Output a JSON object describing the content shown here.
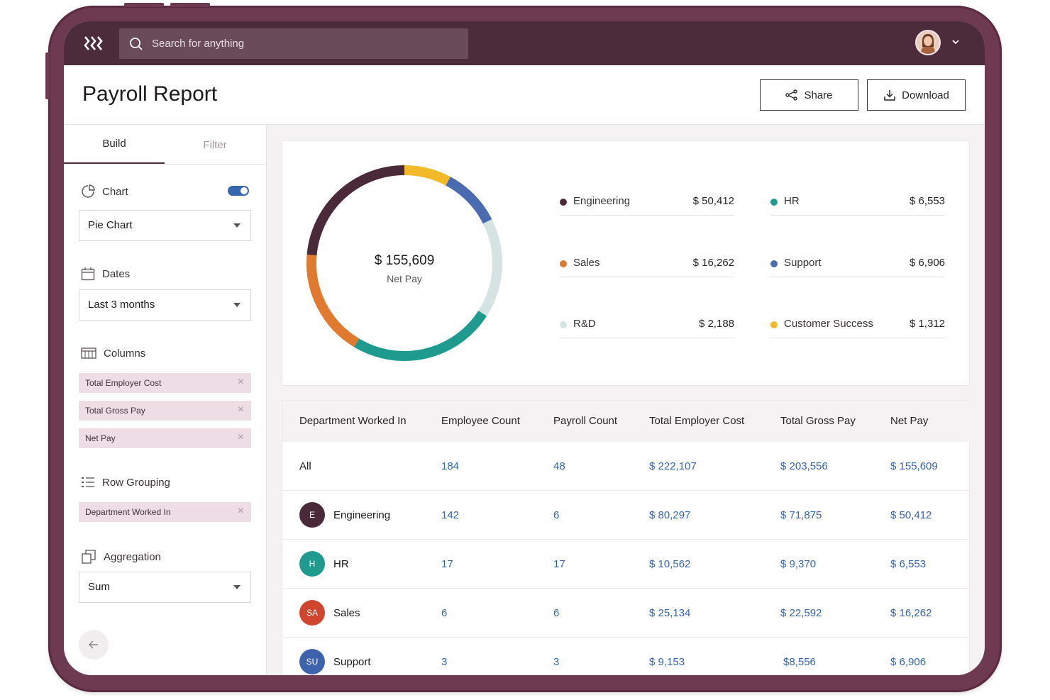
{
  "search": {
    "placeholder": "Search for anything"
  },
  "header": {
    "title": "Payroll Report",
    "share_label": "Share",
    "download_label": "Download"
  },
  "tabs": [
    {
      "label": "Build"
    },
    {
      "label": "Filter"
    }
  ],
  "build": {
    "chart": {
      "label": "Chart",
      "enabled": true,
      "type_value": "Pie Chart"
    },
    "dates": {
      "label": "Dates",
      "value": "Last 3 months"
    },
    "columns": {
      "label": "Columns",
      "chips": [
        "Total Employer Cost",
        "Total Gross Pay",
        "Net Pay"
      ]
    },
    "row_grouping": {
      "label": "Row Grouping",
      "chips": [
        "Department Worked In"
      ]
    },
    "aggregation": {
      "label": "Aggregation",
      "value": "Sum"
    }
  },
  "colors": {
    "accent": "#4c2b3a",
    "link": "#3666b0"
  },
  "chart_data": {
    "type": "pie",
    "center_value": "$ 155,609",
    "center_label": "Net Pay",
    "slices": [
      {
        "name": "Engineering",
        "value": 50412,
        "label": "$ 50,412",
        "color": "#4a2a39"
      },
      {
        "name": "HR",
        "value": 6553,
        "label": "$ 6,553",
        "color": "#1f9a8e"
      },
      {
        "name": "Sales",
        "value": 16262,
        "label": "$ 16,262",
        "color": "#e07a2e"
      },
      {
        "name": "Support",
        "value": 6906,
        "label": "$ 6,906",
        "color": "#4a6bb0"
      },
      {
        "name": "R&D",
        "value": 2188,
        "label": "$ 2,188",
        "color": "#d5e4e3"
      },
      {
        "name": "Customer Success",
        "value": 1312,
        "label": "$ 1,312",
        "color": "#f2b928"
      }
    ]
  },
  "table": {
    "headers": [
      "Department Worked In",
      "Employee Count",
      "Payroll Count",
      "Total Employer Cost",
      "Total Gross Pay",
      "Net Pay"
    ],
    "rows": [
      {
        "initials": "",
        "name": "All",
        "badge_color": "",
        "cells": [
          "184",
          "48",
          "$ 222,107",
          "$ 203,556",
          "$ 155,609"
        ]
      },
      {
        "initials": "E",
        "name": "Engineering",
        "badge_color": "#4a2a39",
        "cells": [
          "142",
          "6",
          "$ 80,297",
          "$ 71,875",
          "$ 50,412"
        ]
      },
      {
        "initials": "H",
        "name": "HR",
        "badge_color": "#1f9a8e",
        "cells": [
          "17",
          "17",
          "$ 10,562",
          "$ 9,370",
          "$ 6,553"
        ]
      },
      {
        "initials": "SA",
        "name": "Sales",
        "badge_color": "#d0452f",
        "cells": [
          "6",
          "6",
          "$ 25,134",
          "$ 22,592",
          "$ 16,262"
        ]
      },
      {
        "initials": "SU",
        "name": "Support",
        "badge_color": "#3f62ad",
        "cells": [
          "3",
          "3",
          "$ 9,153",
          "$8,556",
          "$ 6,906"
        ]
      }
    ]
  }
}
